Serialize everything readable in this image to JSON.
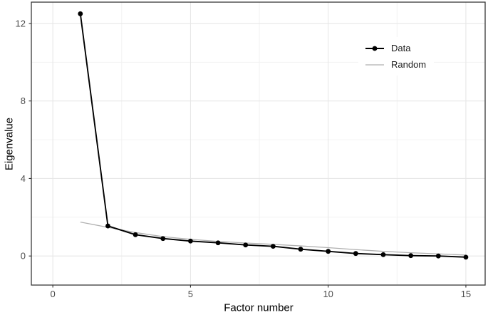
{
  "chart_data": {
    "type": "line",
    "title": "",
    "xlabel": "Factor number",
    "ylabel": "Eigenvalue",
    "x": [
      1,
      2,
      3,
      4,
      5,
      6,
      7,
      8,
      9,
      10,
      11,
      12,
      13,
      14,
      15
    ],
    "series": [
      {
        "name": "Data",
        "color": "#000000",
        "marker": "circle",
        "marker_radius": 3.4,
        "line_width": 1.9,
        "values": [
          12.5,
          1.55,
          1.1,
          0.9,
          0.77,
          0.68,
          0.57,
          0.5,
          0.35,
          0.24,
          0.13,
          0.07,
          0.02,
          0.0,
          -0.06
        ]
      },
      {
        "name": "Random",
        "color": "#b0b0b0",
        "marker": "none",
        "marker_radius": 0,
        "line_width": 1.3,
        "values": [
          1.75,
          1.48,
          1.21,
          1.0,
          0.86,
          0.75,
          0.67,
          0.6,
          0.52,
          0.43,
          0.33,
          0.24,
          0.17,
          0.11,
          0.05
        ]
      }
    ],
    "x_ticks": [
      0,
      5,
      10,
      15
    ],
    "y_ticks": [
      0,
      4,
      8,
      12
    ],
    "x_minor_ticks": [
      2.5,
      7.5,
      12.5
    ],
    "y_minor_ticks": [
      2,
      6,
      10
    ],
    "xlim": [
      -0.78,
      15.7
    ],
    "ylim": [
      -1.5,
      13.1
    ],
    "grid": "both",
    "legend_position": "inside-top-right",
    "colors": {
      "background": "#ffffff",
      "grid_major": "#e7e7e7",
      "grid_minor": "#f1f1f1",
      "panel_border": "#383838",
      "tick": "#333333",
      "tick_label": "#4d4d4d",
      "axis_title": "#000000",
      "legend_text": "#1a1a1a",
      "legend_bg": "#ffffff"
    }
  }
}
